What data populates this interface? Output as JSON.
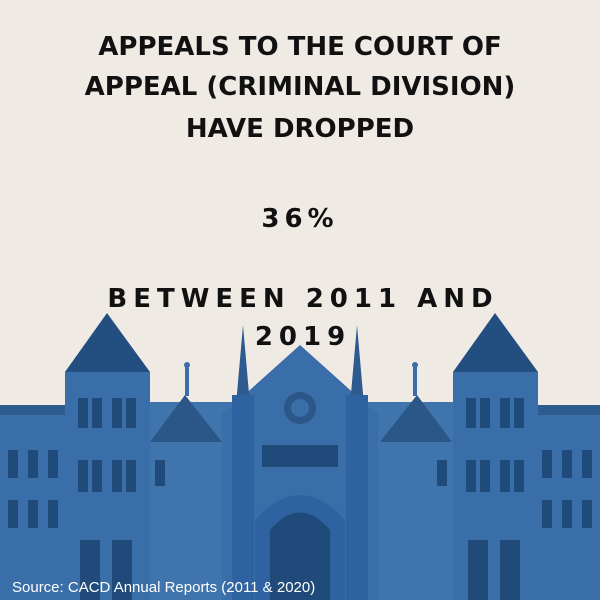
{
  "headline": {
    "lines": [
      "APPEALS TO THE COURT OF",
      "APPEAL (CRIMINAL DIVISION)",
      "HAVE DROPPED"
    ]
  },
  "statistic": "36%",
  "period": {
    "lines": [
      "BETWEEN 2011 AND",
      "2019"
    ]
  },
  "source": "Source: CACD Annual Reports (2011 & 2020)"
}
